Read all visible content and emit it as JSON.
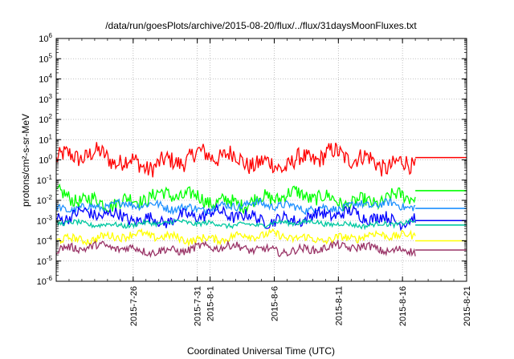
{
  "chart_data": {
    "type": "line",
    "title": "/data/run/goesPlots/archive/2015-08-20/flux/../flux/31daysMoonFluxes.txt",
    "xlabel": "Coordinated Universal Time (UTC)",
    "ylabel": "protons/cm²-s-sr-MeV",
    "y_scale": "log",
    "ylim": [
      1e-06,
      1000000.0
    ],
    "xlim": [
      "2015-07-20",
      "2015-08-21"
    ],
    "y_ticks": [
      {
        "base": "10",
        "exp": "-6"
      },
      {
        "base": "10",
        "exp": "-5"
      },
      {
        "base": "10",
        "exp": "-4"
      },
      {
        "base": "10",
        "exp": "-3"
      },
      {
        "base": "10",
        "exp": "-2"
      },
      {
        "base": "10",
        "exp": "-1"
      },
      {
        "base": "10",
        "exp": "0"
      },
      {
        "base": "10",
        "exp": "1"
      },
      {
        "base": "10",
        "exp": "2"
      },
      {
        "base": "10",
        "exp": "3"
      },
      {
        "base": "10",
        "exp": "4"
      },
      {
        "base": "10",
        "exp": "5"
      },
      {
        "base": "10",
        "exp": "6"
      }
    ],
    "x_ticks": [
      "2015-7-26",
      "2015-7-31",
      "2015-8-1",
      "2015-8-6",
      "2015-8-11",
      "2015-8-16",
      "2015-8-21"
    ],
    "x_tick_dates": [
      "2015-07-26",
      "2015-07-31",
      "2015-08-01",
      "2015-08-06",
      "2015-08-11",
      "2015-08-16",
      "2015-08-21"
    ],
    "grid": true,
    "series_end_date": "2015-08-17",
    "step_end_date": "2015-08-21",
    "series": [
      {
        "color": "#ff0000",
        "base": 1.0,
        "spread": 0.45,
        "final": 1.3
      },
      {
        "color": "#00ff00",
        "base": 0.012,
        "spread": 0.35,
        "final": 0.03
      },
      {
        "color": "#1e90ff",
        "base": 0.005,
        "spread": 0.2,
        "final": 0.004
      },
      {
        "color": "#0000ff",
        "base": 0.0015,
        "spread": 0.3,
        "final": 0.001
      },
      {
        "color": "#00c8a0",
        "base": 0.0007,
        "spread": 0.12,
        "final": 0.0006
      },
      {
        "color": "#ffff00",
        "base": 0.00015,
        "spread": 0.2,
        "final": 0.0001
      },
      {
        "color": "#993366",
        "base": 4e-05,
        "spread": 0.2,
        "final": 3.5e-05
      }
    ]
  }
}
